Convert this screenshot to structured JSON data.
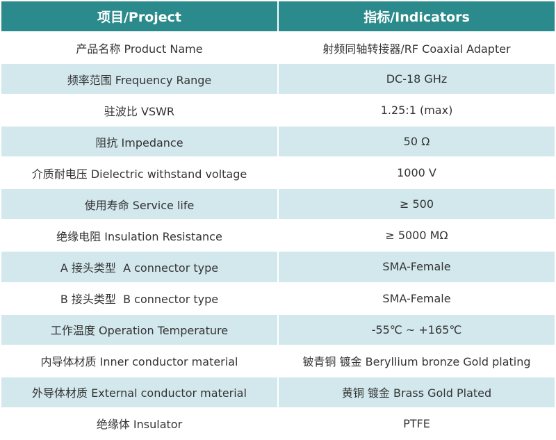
{
  "table": {
    "header": [
      "项目/Project",
      "指标/Indicators"
    ],
    "rows": [
      [
        "产品名称 Product Name",
        "射频同轴转接器/RF Coaxial Adapter"
      ],
      [
        "频率范围 Frequency Range",
        "DC-18 GHz"
      ],
      [
        "驻波比 VSWR",
        "1.25:1 (max)"
      ],
      [
        "阻抗 Impedance",
        "50 Ω"
      ],
      [
        "介质耐电压 Dielectric withstand voltage",
        "1000 V"
      ],
      [
        "使用寿命 Service life",
        "≥ 500"
      ],
      [
        "绝缘电阻 Insulation Resistance",
        "≥ 5000 MΩ"
      ],
      [
        "A 接头类型  A connector type",
        "SMA-Female"
      ],
      [
        "B 接头类型  B connector type",
        "SMA-Female"
      ],
      [
        "工作温度 Operation Temperature",
        "-55℃ ~ +165℃"
      ],
      [
        "内导体材质 Inner conductor material",
        "铍青铜 镀金 Beryllium bronze Gold plating"
      ],
      [
        "外导体材质 External conductor material",
        "黄铜 镀金 Brass Gold Plated"
      ],
      [
        "绝缘体 Insulator",
        "PTFE"
      ]
    ]
  }
}
